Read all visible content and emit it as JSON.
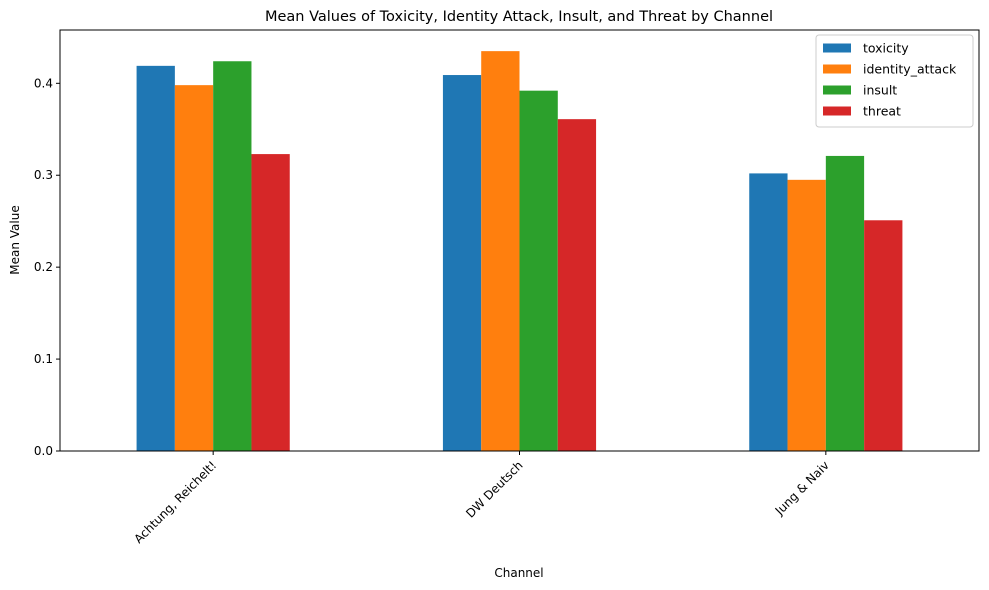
{
  "chart_data": {
    "type": "bar",
    "title": "Mean Values of Toxicity, Identity Attack, Insult, and Threat by Channel",
    "xlabel": "Channel",
    "ylabel": "Mean Value",
    "categories": [
      "Achtung, Reichelt!",
      "DW Deutsch",
      "Jung & Naiv"
    ],
    "series": [
      {
        "name": "toxicity",
        "color": "#1f77b4",
        "values": [
          0.419,
          0.409,
          0.302
        ]
      },
      {
        "name": "identity_attack",
        "color": "#ff7f0e",
        "values": [
          0.398,
          0.435,
          0.295
        ]
      },
      {
        "name": "insult",
        "color": "#2ca02c",
        "values": [
          0.424,
          0.392,
          0.321
        ]
      },
      {
        "name": "threat",
        "color": "#d62728",
        "values": [
          0.323,
          0.361,
          0.251
        ]
      }
    ],
    "ylim": [
      0,
      0.458
    ],
    "yticks": [
      0.0,
      0.1,
      0.2,
      0.3,
      0.4
    ],
    "ytick_labels": [
      "0.0",
      "0.1",
      "0.2",
      "0.3",
      "0.4"
    ],
    "grid": false,
    "legend_position": "top-right",
    "xtick_rotation": 45
  }
}
